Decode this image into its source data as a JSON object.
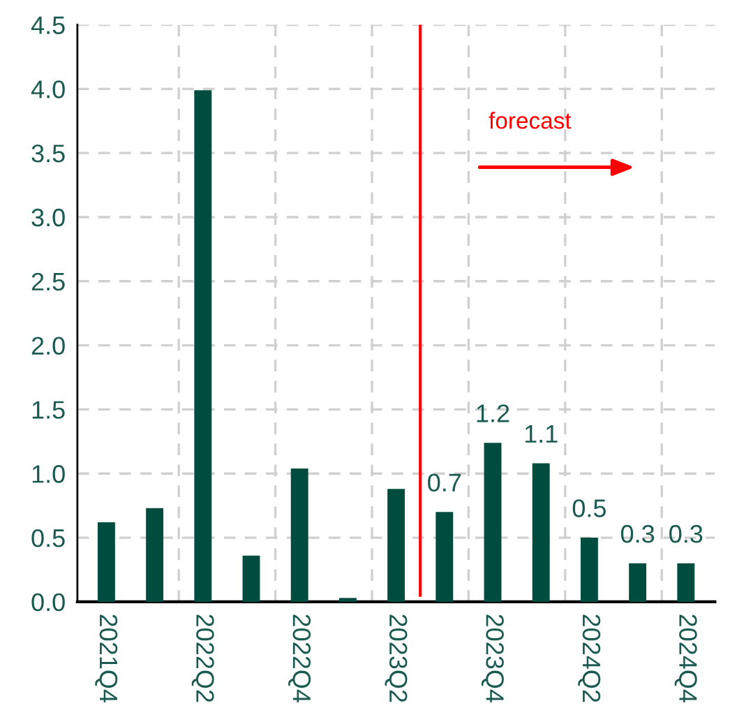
{
  "chart_data": {
    "type": "bar",
    "categories": [
      "2021Q4",
      null,
      "2022Q2",
      null,
      "2022Q4",
      null,
      "2023Q2",
      null,
      "2023Q4",
      null,
      "2024Q2",
      null,
      "2024Q4"
    ],
    "values": [
      0.62,
      0.73,
      3.99,
      0.36,
      1.04,
      0.03,
      0.88,
      0.7,
      1.24,
      1.08,
      0.5,
      0.3,
      0.3
    ],
    "value_labels": [
      null,
      null,
      null,
      null,
      null,
      null,
      null,
      "0.7",
      "1.2",
      "1.1",
      "0.5",
      "0.3",
      "0.3"
    ],
    "color": "#004d40",
    "ylim": [
      0,
      4.5
    ],
    "yticks": [
      {
        "value": 0,
        "label": "0.0"
      },
      {
        "value": 0.5,
        "label": "0.5"
      },
      {
        "value": 1,
        "label": "1.0"
      },
      {
        "value": 1.5,
        "label": "1.5"
      },
      {
        "value": 2,
        "label": "2.0"
      },
      {
        "value": 2.5,
        "label": "2.5"
      },
      {
        "value": 3,
        "label": "3.0"
      },
      {
        "value": 3.5,
        "label": "3.5"
      },
      {
        "value": 4,
        "label": "4.0"
      },
      {
        "value": 4.5,
        "label": "4.5"
      }
    ],
    "grid": true,
    "ref_lines": [
      {
        "axis": "x",
        "value": "2023Q2",
        "color": "#ff0000"
      }
    ],
    "annotations": [
      "forecast"
    ]
  }
}
